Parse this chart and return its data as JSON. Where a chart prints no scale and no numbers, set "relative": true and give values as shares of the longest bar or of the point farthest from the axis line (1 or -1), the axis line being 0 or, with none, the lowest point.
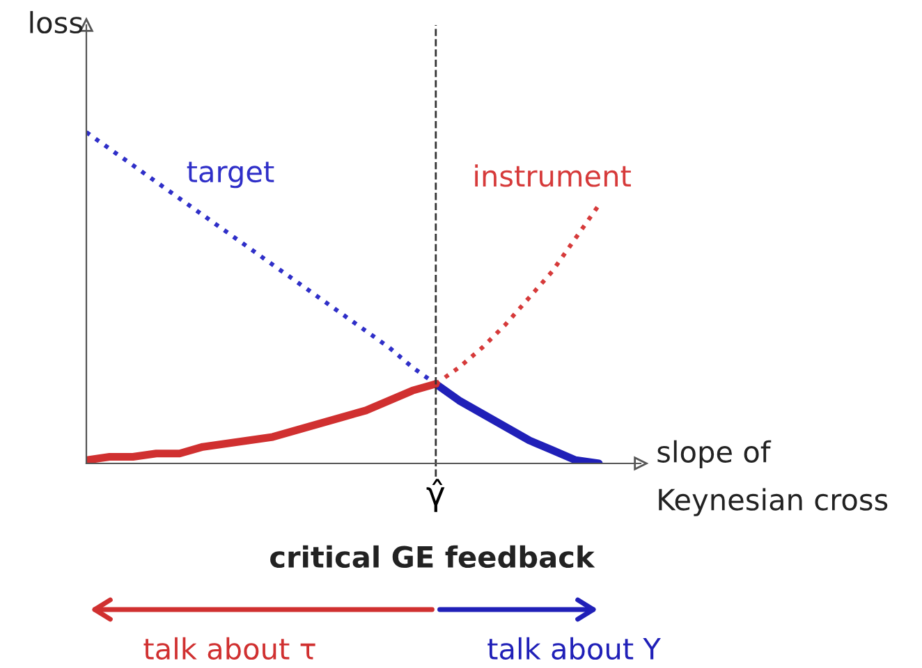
{
  "chart_data": {
    "type": "line",
    "relative": true,
    "xlabel": "slope of\nKeynesian cross",
    "ylabel": "loss",
    "categories": [
      null,
      null,
      null,
      null,
      null,
      null,
      null,
      null,
      null,
      null,
      null,
      null,
      null,
      null,
      null,
      null,
      null,
      null,
      null,
      null,
      null,
      null,
      null
    ],
    "series": [
      {
        "name": "target",
        "color": "#2f2fc8",
        "line_style": "dotted",
        "values": [
          1,
          0.95,
          0.9,
          0.85,
          0.8,
          0.75,
          0.7,
          0.65,
          0.6,
          0.55,
          0.5,
          0.45,
          0.4,
          0.35,
          0.29,
          0.24,
          null,
          null,
          null,
          null,
          null,
          null,
          null
        ]
      },
      {
        "color": "#2020b8",
        "line_style": "solid",
        "values": [
          null,
          null,
          null,
          null,
          null,
          null,
          null,
          null,
          null,
          null,
          null,
          null,
          null,
          null,
          null,
          0.24,
          0.19,
          0.15,
          0.11,
          0.07,
          0.04,
          0.01,
          0
        ]
      },
      {
        "name": "instrument",
        "color": "#d63a3a",
        "line_style": "dotted",
        "values": [
          null,
          null,
          null,
          null,
          null,
          null,
          null,
          null,
          null,
          null,
          null,
          null,
          null,
          null,
          null,
          0.24,
          0.29,
          0.35,
          0.42,
          0.5,
          0.58,
          0.68,
          0.78
        ]
      },
      {
        "color": "#d03030",
        "line_style": "solid",
        "values": [
          0.01,
          0.02,
          0.02,
          0.03,
          0.03,
          0.05,
          0.06,
          0.07,
          0.08,
          0.1,
          0.12,
          0.14,
          0.16,
          0.19,
          0.22,
          0.24,
          null,
          null,
          null,
          null,
          null,
          null,
          null
        ]
      }
    ],
    "annotations": [
      "critical GE feedback",
      "talk about τ",
      "talk about Y",
      "γ̂"
    ]
  }
}
